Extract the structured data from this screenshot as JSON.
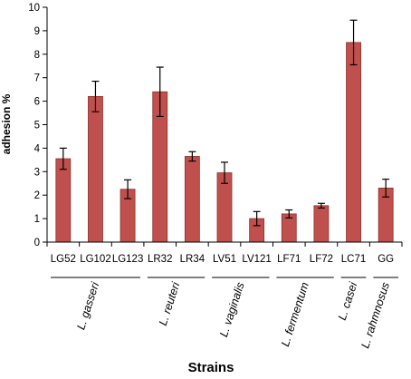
{
  "chart_data": {
    "type": "bar",
    "ylabel": "adhesion %",
    "xlabel": "Strains",
    "ylim": [
      0,
      10
    ],
    "yticks": [
      0,
      1,
      2,
      3,
      4,
      5,
      6,
      7,
      8,
      9,
      10
    ],
    "grid": false,
    "bar_color": "#c0504d",
    "bar_edge_color": "#8b2f2c",
    "categories": [
      "LG52",
      "LG102",
      "LG123",
      "LR32",
      "LR34",
      "LV51",
      "LV121",
      "LF71",
      "LF72",
      "LC71",
      "GG"
    ],
    "values": [
      3.55,
      6.2,
      2.25,
      6.4,
      3.65,
      2.95,
      1.0,
      1.2,
      1.55,
      8.5,
      2.3
    ],
    "errors": [
      0.45,
      0.65,
      0.4,
      1.05,
      0.2,
      0.45,
      0.3,
      0.17,
      0.1,
      0.95,
      0.38
    ],
    "groups": [
      {
        "label": "L. gasseri",
        "start": 0,
        "end": 2
      },
      {
        "label": "L. reuteri",
        "start": 3,
        "end": 4
      },
      {
        "label": "L. vaginalis",
        "start": 5,
        "end": 6
      },
      {
        "label": "L. fermentum",
        "start": 7,
        "end": 8
      },
      {
        "label": "L. casei",
        "start": 9,
        "end": 9
      },
      {
        "label": "L. rahmnosus",
        "start": 10,
        "end": 10
      }
    ]
  }
}
